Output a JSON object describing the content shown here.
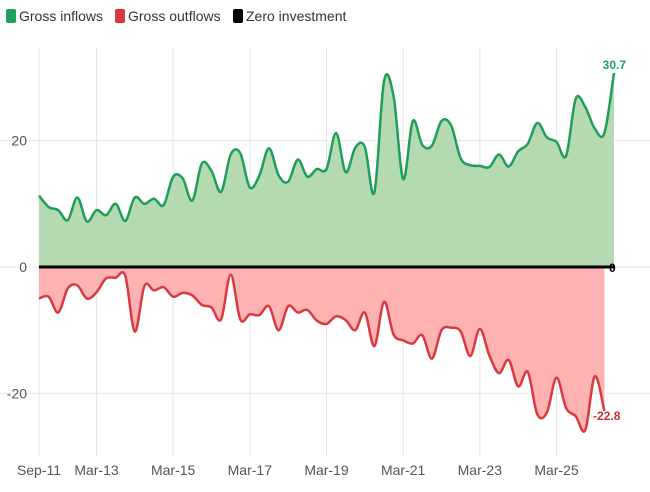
{
  "colors": {
    "inflow_line": "#1f9e5a",
    "inflow_fill": "#b5dab2",
    "outflow_line": "#d93a41",
    "outflow_fill": "#ffb2b2",
    "zero_line": "#000000",
    "grid": "#e6e6e6",
    "end_inflow_label": "#1f9e5a",
    "end_outflow_label": "#c8302f",
    "end_zero_label": "#000000"
  },
  "chart_data": {
    "type": "area",
    "title": "",
    "xlabel": "",
    "ylabel": "",
    "ylim": [
      -31,
      35
    ],
    "y_ticks": [
      -20,
      0,
      20
    ],
    "x_ticks": [
      {
        "label": "Sep-11",
        "date": "2011-09"
      },
      {
        "label": "Mar-13",
        "date": "2013-03"
      },
      {
        "label": "Mar-15",
        "date": "2015-03"
      },
      {
        "label": "Mar-17",
        "date": "2017-03"
      },
      {
        "label": "Mar-19",
        "date": "2019-03"
      },
      {
        "label": "Mar-21",
        "date": "2021-03"
      },
      {
        "label": "Mar-23",
        "date": "2023-03"
      },
      {
        "label": "Mar-25",
        "date": "2025-03"
      }
    ],
    "grid": true,
    "legend_position": "top-left",
    "legend": [
      {
        "label": "Gross inflows",
        "color": "#1f9e5a"
      },
      {
        "label": "Gross outflows",
        "color": "#d93a41"
      },
      {
        "label": "Zero investment",
        "color": "#000000"
      }
    ],
    "end_labels": {
      "inflows": "30.7",
      "outflows": "-22.8",
      "zero": "0"
    },
    "series": [
      {
        "name": "Gross inflows",
        "points": [
          [
            "2011-09",
            11.3
          ],
          [
            "2011-12",
            9.5
          ],
          [
            "2012-03",
            9.0
          ],
          [
            "2012-06",
            7.4
          ],
          [
            "2012-09",
            11.0
          ],
          [
            "2012-12",
            7.2
          ],
          [
            "2013-03",
            9.0
          ],
          [
            "2013-06",
            8.2
          ],
          [
            "2013-09",
            10.0
          ],
          [
            "2013-12",
            7.3
          ],
          [
            "2014-03",
            11.0
          ],
          [
            "2014-06",
            10.0
          ],
          [
            "2014-09",
            10.8
          ],
          [
            "2014-12",
            9.8
          ],
          [
            "2015-03",
            14.3
          ],
          [
            "2015-06",
            14.0
          ],
          [
            "2015-09",
            10.5
          ],
          [
            "2015-12",
            16.4
          ],
          [
            "2016-03",
            15.2
          ],
          [
            "2016-06",
            11.9
          ],
          [
            "2016-09",
            17.8
          ],
          [
            "2016-12",
            18.0
          ],
          [
            "2017-03",
            12.6
          ],
          [
            "2017-06",
            14.5
          ],
          [
            "2017-09",
            18.8
          ],
          [
            "2017-12",
            14.5
          ],
          [
            "2018-03",
            13.5
          ],
          [
            "2018-06",
            17.0
          ],
          [
            "2018-09",
            14.3
          ],
          [
            "2018-12",
            15.5
          ],
          [
            "2019-03",
            15.5
          ],
          [
            "2019-06",
            21.2
          ],
          [
            "2019-09",
            15.0
          ],
          [
            "2019-12",
            18.9
          ],
          [
            "2020-03",
            19.0
          ],
          [
            "2020-06",
            11.8
          ],
          [
            "2020-09",
            29.4
          ],
          [
            "2020-12",
            27.0
          ],
          [
            "2021-03",
            13.9
          ],
          [
            "2021-06",
            23.1
          ],
          [
            "2021-09",
            19.3
          ],
          [
            "2021-12",
            19.2
          ],
          [
            "2022-03",
            23.1
          ],
          [
            "2022-06",
            22.4
          ],
          [
            "2022-09",
            17.2
          ],
          [
            "2022-12",
            16.1
          ],
          [
            "2023-03",
            16.0
          ],
          [
            "2023-06",
            15.8
          ],
          [
            "2023-09",
            17.8
          ],
          [
            "2023-12",
            15.9
          ],
          [
            "2024-03",
            18.3
          ],
          [
            "2024-06",
            19.5
          ],
          [
            "2024-09",
            22.8
          ],
          [
            "2024-12",
            20.5
          ],
          [
            "2025-03",
            19.8
          ],
          [
            "2025-06",
            17.6
          ],
          [
            "2025-09",
            26.6
          ],
          [
            "2025-12",
            25.3
          ],
          [
            "2026-03",
            21.9
          ],
          [
            "2026-06",
            21.2
          ],
          [
            "2026-09",
            30.7
          ]
        ]
      },
      {
        "name": "Gross outflows",
        "points": [
          [
            "2011-09",
            -5.0
          ],
          [
            "2011-12",
            -4.7
          ],
          [
            "2012-03",
            -7.2
          ],
          [
            "2012-06",
            -3.4
          ],
          [
            "2012-09",
            -2.9
          ],
          [
            "2012-12",
            -5.0
          ],
          [
            "2013-03",
            -4.0
          ],
          [
            "2013-06",
            -1.8
          ],
          [
            "2013-09",
            -1.7
          ],
          [
            "2013-12",
            -1.4
          ],
          [
            "2014-03",
            -10.2
          ],
          [
            "2014-06",
            -3.0
          ],
          [
            "2014-09",
            -3.7
          ],
          [
            "2014-12",
            -3.2
          ],
          [
            "2015-03",
            -4.7
          ],
          [
            "2015-06",
            -4.1
          ],
          [
            "2015-09",
            -4.5
          ],
          [
            "2015-12",
            -6.0
          ],
          [
            "2016-03",
            -6.4
          ],
          [
            "2016-06",
            -8.3
          ],
          [
            "2016-09",
            -1.2
          ],
          [
            "2016-12",
            -8.3
          ],
          [
            "2017-03",
            -7.5
          ],
          [
            "2017-06",
            -7.6
          ],
          [
            "2017-09",
            -6.2
          ],
          [
            "2017-12",
            -10.0
          ],
          [
            "2018-03",
            -6.2
          ],
          [
            "2018-06",
            -7.2
          ],
          [
            "2018-09",
            -6.8
          ],
          [
            "2018-12",
            -8.5
          ],
          [
            "2019-03",
            -9.0
          ],
          [
            "2019-06",
            -7.8
          ],
          [
            "2019-09",
            -8.4
          ],
          [
            "2019-12",
            -10.0
          ],
          [
            "2020-03",
            -7.2
          ],
          [
            "2020-06",
            -12.5
          ],
          [
            "2020-09",
            -5.5
          ],
          [
            "2020-12",
            -10.7
          ],
          [
            "2021-03",
            -11.6
          ],
          [
            "2021-06",
            -12.1
          ],
          [
            "2021-09",
            -10.8
          ],
          [
            "2021-12",
            -14.5
          ],
          [
            "2022-03",
            -10.0
          ],
          [
            "2022-06",
            -9.6
          ],
          [
            "2022-09",
            -10.2
          ],
          [
            "2022-12",
            -14.1
          ],
          [
            "2023-03",
            -9.8
          ],
          [
            "2023-06",
            -14.0
          ],
          [
            "2023-09",
            -16.8
          ],
          [
            "2023-12",
            -14.7
          ],
          [
            "2024-03",
            -18.9
          ],
          [
            "2024-06",
            -16.6
          ],
          [
            "2024-09",
            -23.3
          ],
          [
            "2024-12",
            -23.0
          ],
          [
            "2025-03",
            -17.5
          ],
          [
            "2025-06",
            -22.3
          ],
          [
            "2025-09",
            -23.6
          ],
          [
            "2025-12",
            -25.8
          ],
          [
            "2026-03",
            -17.3
          ],
          [
            "2026-06",
            -22.8
          ]
        ]
      },
      {
        "name": "Zero investment",
        "points": [
          [
            "2011-09",
            0
          ],
          [
            "2026-09",
            0
          ]
        ]
      }
    ]
  }
}
